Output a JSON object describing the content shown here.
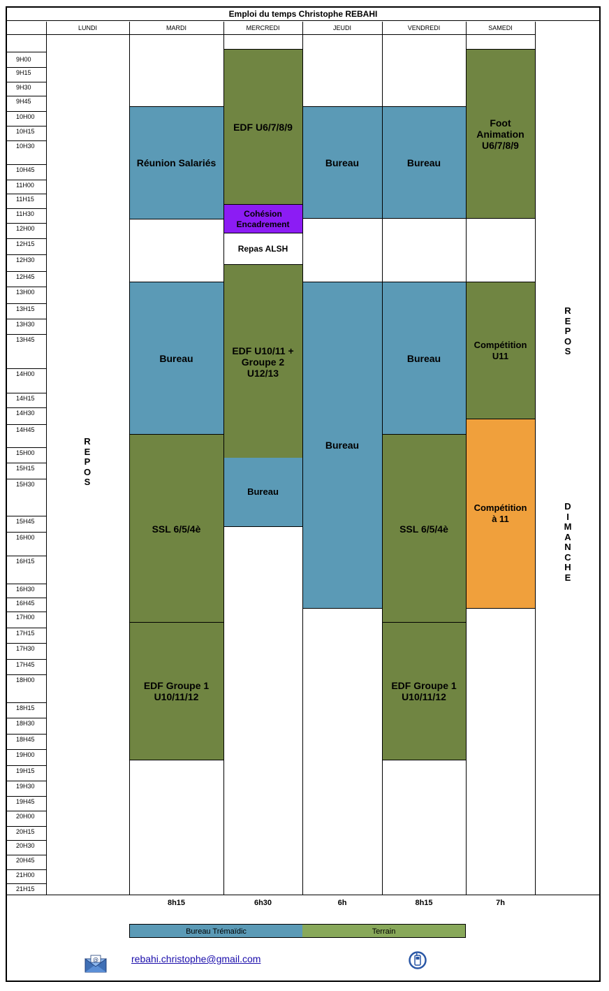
{
  "title": "Emploi du temps Christophe REBAHI",
  "days": [
    "LUNDI",
    "MARDI",
    "MERCREDI",
    "JEUDI",
    "VENDREDI",
    "SAMEDI"
  ],
  "times": [
    "9H00",
    "9H15",
    "9H30",
    "9H45",
    "10H00",
    "10H15",
    "10H30",
    "10H45",
    "11H00",
    "11H15",
    "11H30",
    "12H00",
    "12H15",
    "12H30",
    "12H45",
    "13H00",
    "13H15",
    "13H30",
    "13H45",
    "14H00",
    "14H15",
    "14H30",
    "14H45",
    "15H00",
    "15H15",
    "15H30",
    "15H45",
    "16H00",
    "16H15",
    "16H30",
    "16H45",
    "17H00",
    "17H15",
    "17H30",
    "17H45",
    "18H00",
    "18H15",
    "18H30",
    "18H45",
    "19H00",
    "19H15",
    "19H30",
    "19H45",
    "20H00",
    "20H15",
    "20H30",
    "20H45",
    "21H00",
    "21H15"
  ],
  "events": {
    "mardi_reunion": "Réunion Salariés",
    "mardi_bureau": "Bureau",
    "mardi_ssl": "SSL 6/5/4è",
    "mardi_edf": "EDF Groupe 1\nU10/11/12",
    "mercredi_edf1": "EDF U6/7/8/9",
    "mercredi_cohesion": "Cohésion\nEncadrement",
    "mercredi_repas": "Repas ALSH",
    "mercredi_edf2": "EDF U10/11 +\nGroupe 2\nU12/13",
    "mercredi_bureau": "Bureau",
    "jeudi_bureau1": "Bureau",
    "jeudi_bureau2": "Bureau",
    "vendredi_bureau1": "Bureau",
    "vendredi_bureau2": "Bureau",
    "vendredi_ssl": "SSL 6/5/4è",
    "vendredi_edf": "EDF Groupe 1\nU10/11/12",
    "samedi_foot": "Foot\nAnimation\nU6/7/8/9",
    "samedi_comp1": "Compétition\nU11",
    "samedi_comp2": "Compétition\nà 11"
  },
  "lundi_repos": "R\nE\nP\nO\nS",
  "dimanche_repos": "R\nE\nP\nO\nS",
  "dimanche_label": "D\nI\nM\nA\nN\nC\nH\nE",
  "totals": {
    "mardi": "8h15",
    "mercredi": "6h30",
    "jeudi": "6h",
    "vendredi": "8h15",
    "samedi": "7h"
  },
  "legend": {
    "bureau": "Bureau Trémaïdic",
    "terrain": "Terrain"
  },
  "email": "rebahi.christophe@gmail.com",
  "icons": {
    "mail": "envelope-icon",
    "phone": "phone-icon"
  },
  "colors": {
    "terrain": "#708542",
    "bureau": "#5b9ab6",
    "cohesion": "#8c1cf4",
    "competition": "#f0a03c"
  }
}
